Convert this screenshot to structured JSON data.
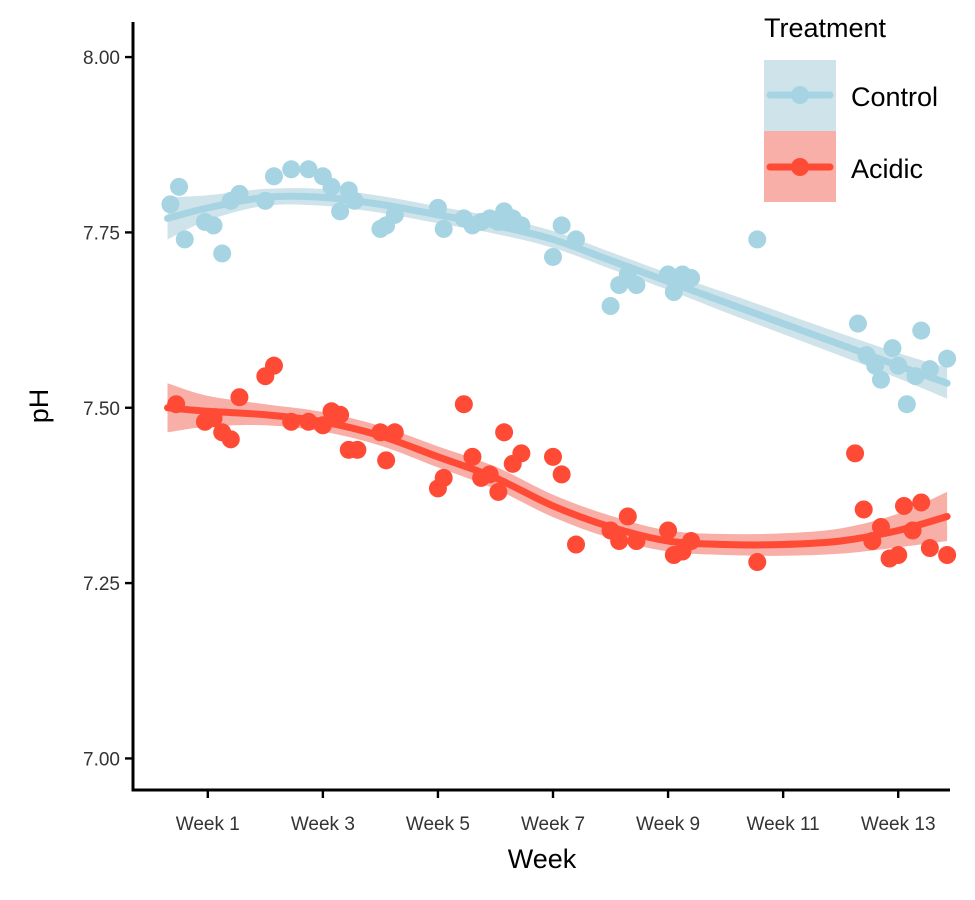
{
  "chart_data": {
    "type": "scatter",
    "xlabel": "Week",
    "ylabel": "pH",
    "xlim": [
      -0.3,
      13.9
    ],
    "ylim": [
      6.955,
      8.05
    ],
    "x_ticks": [
      {
        "value": 1,
        "label": "Week 1"
      },
      {
        "value": 3,
        "label": "Week 3"
      },
      {
        "value": 5,
        "label": "Week 5"
      },
      {
        "value": 7,
        "label": "Week 7"
      },
      {
        "value": 9,
        "label": "Week 9"
      },
      {
        "value": 11,
        "label": "Week 11"
      },
      {
        "value": 13,
        "label": "Week 13"
      }
    ],
    "y_ticks": [
      {
        "value": 7.0,
        "label": "7.00"
      },
      {
        "value": 7.25,
        "label": "7.25"
      },
      {
        "value": 7.5,
        "label": "7.50"
      },
      {
        "value": 7.75,
        "label": "7.75"
      },
      {
        "value": 8.0,
        "label": "8.00"
      }
    ],
    "legend": {
      "title": "Treatment",
      "position": "top-right"
    },
    "grid": false,
    "series": [
      {
        "name": "Control",
        "color": "#A6D4E3",
        "band_color": "#CFE3EA",
        "points": [
          [
            0.35,
            7.79
          ],
          [
            0.5,
            7.815
          ],
          [
            0.6,
            7.74
          ],
          [
            0.95,
            7.765
          ],
          [
            1.1,
            7.76
          ],
          [
            1.25,
            7.72
          ],
          [
            1.4,
            7.795
          ],
          [
            1.55,
            7.805
          ],
          [
            2.0,
            7.795
          ],
          [
            2.15,
            7.83
          ],
          [
            2.45,
            7.84
          ],
          [
            2.75,
            7.84
          ],
          [
            3.0,
            7.83
          ],
          [
            3.15,
            7.815
          ],
          [
            3.3,
            7.78
          ],
          [
            3.45,
            7.81
          ],
          [
            3.55,
            7.795
          ],
          [
            4.0,
            7.755
          ],
          [
            4.1,
            7.76
          ],
          [
            4.25,
            7.775
          ],
          [
            5.0,
            7.785
          ],
          [
            5.1,
            7.755
          ],
          [
            5.45,
            7.77
          ],
          [
            5.6,
            7.76
          ],
          [
            5.75,
            7.765
          ],
          [
            5.9,
            7.77
          ],
          [
            6.05,
            7.765
          ],
          [
            6.15,
            7.78
          ],
          [
            6.3,
            7.77
          ],
          [
            6.45,
            7.76
          ],
          [
            7.0,
            7.715
          ],
          [
            7.15,
            7.76
          ],
          [
            7.4,
            7.74
          ],
          [
            8.0,
            7.645
          ],
          [
            8.15,
            7.675
          ],
          [
            8.3,
            7.69
          ],
          [
            8.45,
            7.675
          ],
          [
            9.0,
            7.69
          ],
          [
            9.1,
            7.665
          ],
          [
            9.25,
            7.69
          ],
          [
            9.4,
            7.685
          ],
          [
            10.55,
            7.74
          ],
          [
            12.3,
            7.62
          ],
          [
            12.45,
            7.575
          ],
          [
            12.6,
            7.56
          ],
          [
            12.7,
            7.54
          ],
          [
            12.9,
            7.585
          ],
          [
            13.0,
            7.56
          ],
          [
            13.15,
            7.505
          ],
          [
            13.3,
            7.545
          ],
          [
            13.4,
            7.61
          ],
          [
            13.55,
            7.555
          ],
          [
            13.85,
            7.57
          ]
        ],
        "fit": [
          [
            0.3,
            7.77
          ],
          [
            1.0,
            7.785
          ],
          [
            2.0,
            7.8
          ],
          [
            3.0,
            7.8
          ],
          [
            4.0,
            7.79
          ],
          [
            5.0,
            7.775
          ],
          [
            6.0,
            7.76
          ],
          [
            7.0,
            7.74
          ],
          [
            8.0,
            7.71
          ],
          [
            9.0,
            7.68
          ],
          [
            10.0,
            7.65
          ],
          [
            11.0,
            7.62
          ],
          [
            12.0,
            7.59
          ],
          [
            13.0,
            7.56
          ],
          [
            13.85,
            7.535
          ]
        ],
        "band_halfwidth": [
          0.03,
          0.018,
          0.012,
          0.012,
          0.012,
          0.012,
          0.012,
          0.012,
          0.012,
          0.012,
          0.014,
          0.015,
          0.016,
          0.018,
          0.022
        ]
      },
      {
        "name": "Acidic",
        "color": "#FF4A36",
        "band_color": "#F7AFA8",
        "points": [
          [
            0.45,
            7.505
          ],
          [
            0.95,
            7.48
          ],
          [
            1.1,
            7.485
          ],
          [
            1.25,
            7.465
          ],
          [
            1.4,
            7.455
          ],
          [
            1.55,
            7.515
          ],
          [
            2.0,
            7.545
          ],
          [
            2.15,
            7.56
          ],
          [
            2.45,
            7.48
          ],
          [
            2.75,
            7.48
          ],
          [
            3.0,
            7.475
          ],
          [
            3.15,
            7.495
          ],
          [
            3.3,
            7.49
          ],
          [
            3.45,
            7.44
          ],
          [
            3.6,
            7.44
          ],
          [
            4.0,
            7.465
          ],
          [
            4.1,
            7.425
          ],
          [
            4.25,
            7.465
          ],
          [
            5.0,
            7.385
          ],
          [
            5.1,
            7.4
          ],
          [
            5.45,
            7.505
          ],
          [
            5.6,
            7.43
          ],
          [
            5.75,
            7.4
          ],
          [
            5.9,
            7.405
          ],
          [
            6.05,
            7.38
          ],
          [
            6.15,
            7.465
          ],
          [
            6.3,
            7.42
          ],
          [
            6.45,
            7.435
          ],
          [
            7.0,
            7.43
          ],
          [
            7.15,
            7.405
          ],
          [
            7.4,
            7.305
          ],
          [
            8.0,
            7.325
          ],
          [
            8.15,
            7.31
          ],
          [
            8.3,
            7.345
          ],
          [
            8.45,
            7.31
          ],
          [
            9.0,
            7.325
          ],
          [
            9.1,
            7.29
          ],
          [
            9.25,
            7.295
          ],
          [
            9.4,
            7.31
          ],
          [
            10.55,
            7.28
          ],
          [
            12.25,
            7.435
          ],
          [
            12.4,
            7.355
          ],
          [
            12.55,
            7.31
          ],
          [
            12.7,
            7.33
          ],
          [
            12.85,
            7.285
          ],
          [
            13.0,
            7.29
          ],
          [
            13.1,
            7.36
          ],
          [
            13.25,
            7.325
          ],
          [
            13.4,
            7.365
          ],
          [
            13.55,
            7.3
          ],
          [
            13.85,
            7.29
          ]
        ],
        "fit": [
          [
            0.3,
            7.5
          ],
          [
            1.0,
            7.495
          ],
          [
            2.0,
            7.49
          ],
          [
            3.0,
            7.48
          ],
          [
            4.0,
            7.46
          ],
          [
            5.0,
            7.43
          ],
          [
            6.0,
            7.4
          ],
          [
            7.0,
            7.36
          ],
          [
            8.0,
            7.33
          ],
          [
            9.0,
            7.31
          ],
          [
            10.0,
            7.305
          ],
          [
            11.0,
            7.305
          ],
          [
            12.0,
            7.31
          ],
          [
            13.0,
            7.325
          ],
          [
            13.85,
            7.345
          ]
        ],
        "band_halfwidth": [
          0.035,
          0.022,
          0.015,
          0.014,
          0.014,
          0.015,
          0.016,
          0.016,
          0.016,
          0.015,
          0.015,
          0.016,
          0.018,
          0.024,
          0.035
        ]
      }
    ]
  }
}
